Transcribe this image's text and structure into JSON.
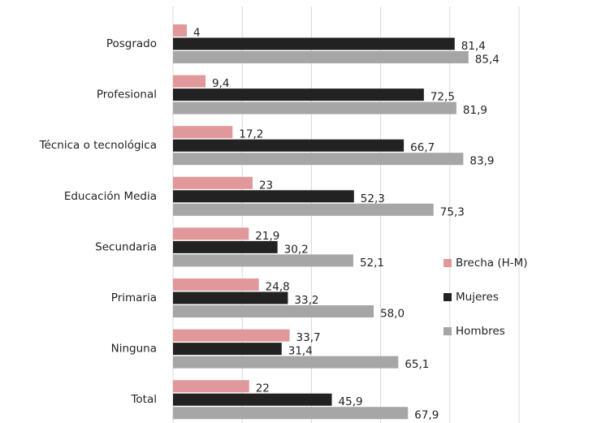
{
  "chart_data": {
    "type": "hbar",
    "categories": [
      "Posgrado",
      "Profesional",
      "Técnica o tecnológica",
      "Educación Media",
      "Secundaria",
      "Primaria",
      "Ninguna",
      "Total"
    ],
    "series": [
      {
        "name": "Brecha (H-M)",
        "color": "#e0989a",
        "values": [
          4,
          9.4,
          17.2,
          23,
          21.9,
          24.8,
          33.7,
          22
        ],
        "value_labels": [
          "4",
          "9,4",
          "17,2",
          "23",
          "21,9",
          "24,8",
          "33,7",
          "22"
        ]
      },
      {
        "name": "Mujeres",
        "color": "#222222",
        "values": [
          81.4,
          72.5,
          66.7,
          52.3,
          30.2,
          33.2,
          31.4,
          45.9
        ],
        "value_labels": [
          "81,4",
          "72,5",
          "66,7",
          "52,3",
          "30,2",
          "33,2",
          "31,4",
          "45,9"
        ]
      },
      {
        "name": "Hombres",
        "color": "#a6a6a6",
        "values": [
          85.4,
          81.9,
          83.9,
          75.3,
          52.1,
          58.0,
          65.1,
          67.9
        ],
        "value_labels": [
          "85,4",
          "81,9",
          "83,9",
          "75,3",
          "52,1",
          "58,0",
          "65,1",
          "67,9"
        ]
      }
    ],
    "xlim": [
      0,
      100
    ],
    "xticks": [
      0,
      20,
      40,
      60,
      80,
      100
    ],
    "grid": true,
    "legend": "right"
  }
}
